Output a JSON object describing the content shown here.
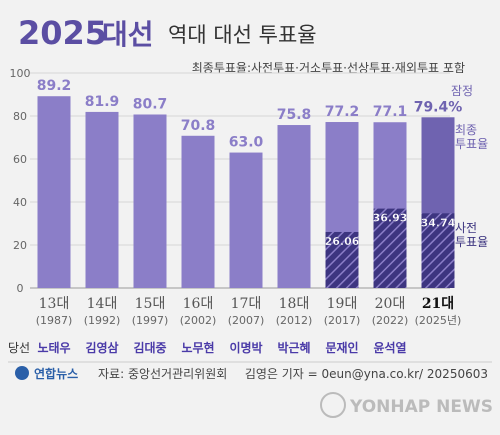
{
  "title": {
    "year": "2025",
    "event": "대선",
    "main": "역대 대선 투표율"
  },
  "subtitle": "최종투표율:사전투표·거소투표·선상투표·재외투표 포함",
  "legend": {
    "final_line1": "최종",
    "final_line2": "투표율",
    "early_line1": "사전",
    "early_line2": "투표율",
    "provisional": "잠정"
  },
  "winner_label": "당선",
  "colors": {
    "bar": "#8b7ec8",
    "bar_last": "#6f63b0",
    "early": "#3d3580",
    "title_purple": "#5b4ea3",
    "value_text": "#ffffff",
    "winner_text": "#4a3aa8"
  },
  "chart_data": {
    "type": "bar",
    "categories": [
      "13대",
      "14대",
      "15대",
      "16대",
      "17대",
      "18대",
      "19대",
      "20대",
      "21대"
    ],
    "years": [
      "(1987)",
      "(1992)",
      "(1997)",
      "(2002)",
      "(2007)",
      "(2012)",
      "(2017)",
      "(2022)",
      "(2025년)"
    ],
    "winners": [
      "노태우",
      "김영삼",
      "김대중",
      "노무현",
      "이명박",
      "박근혜",
      "문재인",
      "윤석열",
      ""
    ],
    "series": [
      {
        "name": "최종투표율",
        "values": [
          89.2,
          81.9,
          80.7,
          70.8,
          63.0,
          75.8,
          77.2,
          77.1,
          79.4
        ]
      },
      {
        "name": "사전투표율",
        "values": [
          null,
          null,
          null,
          null,
          null,
          null,
          26.06,
          36.93,
          34.74
        ]
      }
    ],
    "value_labels": [
      "89.2",
      "81.9",
      "80.7",
      "70.8",
      "63.0",
      "75.8",
      "77.2",
      "77.1",
      "79.4%"
    ],
    "early_labels": [
      "",
      "",
      "",
      "",
      "",
      "",
      "26.06",
      "36.93",
      "34.74"
    ],
    "yticks": [
      0,
      20,
      40,
      60,
      80,
      100
    ],
    "ylim": [
      0,
      100
    ],
    "grid": true
  },
  "footer": {
    "logo": "연합뉴스",
    "source": "자료: 중앙선거관리위원회",
    "credit": "김영은 기자 = 0eun@yna.co.kr/ 20250603",
    "watermark": "YONHAP NEWS"
  }
}
